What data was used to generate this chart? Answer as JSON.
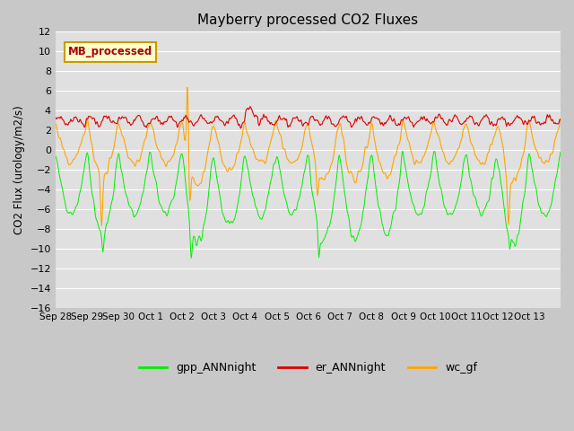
{
  "title": "Mayberry processed CO2 Fluxes",
  "ylabel": "CO2 Flux (urology/m2/s)",
  "ylim": [
    -16,
    12
  ],
  "yticks": [
    -16,
    -14,
    -12,
    -10,
    -8,
    -6,
    -4,
    -2,
    0,
    2,
    4,
    6,
    8,
    10,
    12
  ],
  "fig_bg_color": "#c8c8c8",
  "ax_bg_color": "#e0e0e0",
  "grid_color": "#ffffff",
  "line_colors": {
    "gpp": "#00ee00",
    "er": "#dd0000",
    "wc": "#ffa500"
  },
  "legend_labels": [
    "gpp_ANNnight",
    "er_ANNnight",
    "wc_gf"
  ],
  "annotation_text": "MB_processed",
  "annotation_color": "#aa0000",
  "annotation_bg": "#ffffcc",
  "annotation_border": "#cc9900",
  "x_tick_labels": [
    "Sep 28",
    "Sep 29",
    "Sep 30",
    "Oct 1",
    "Oct 2",
    "Oct 3",
    "Oct 4",
    "Oct 5",
    "Oct 6",
    "Oct 7",
    "Oct 8",
    "Oct 9",
    "Oct 10",
    "Oct 11",
    "Oct 12",
    "Oct 13"
  ],
  "n_per_day": 48,
  "n_days": 16,
  "seed": 7
}
